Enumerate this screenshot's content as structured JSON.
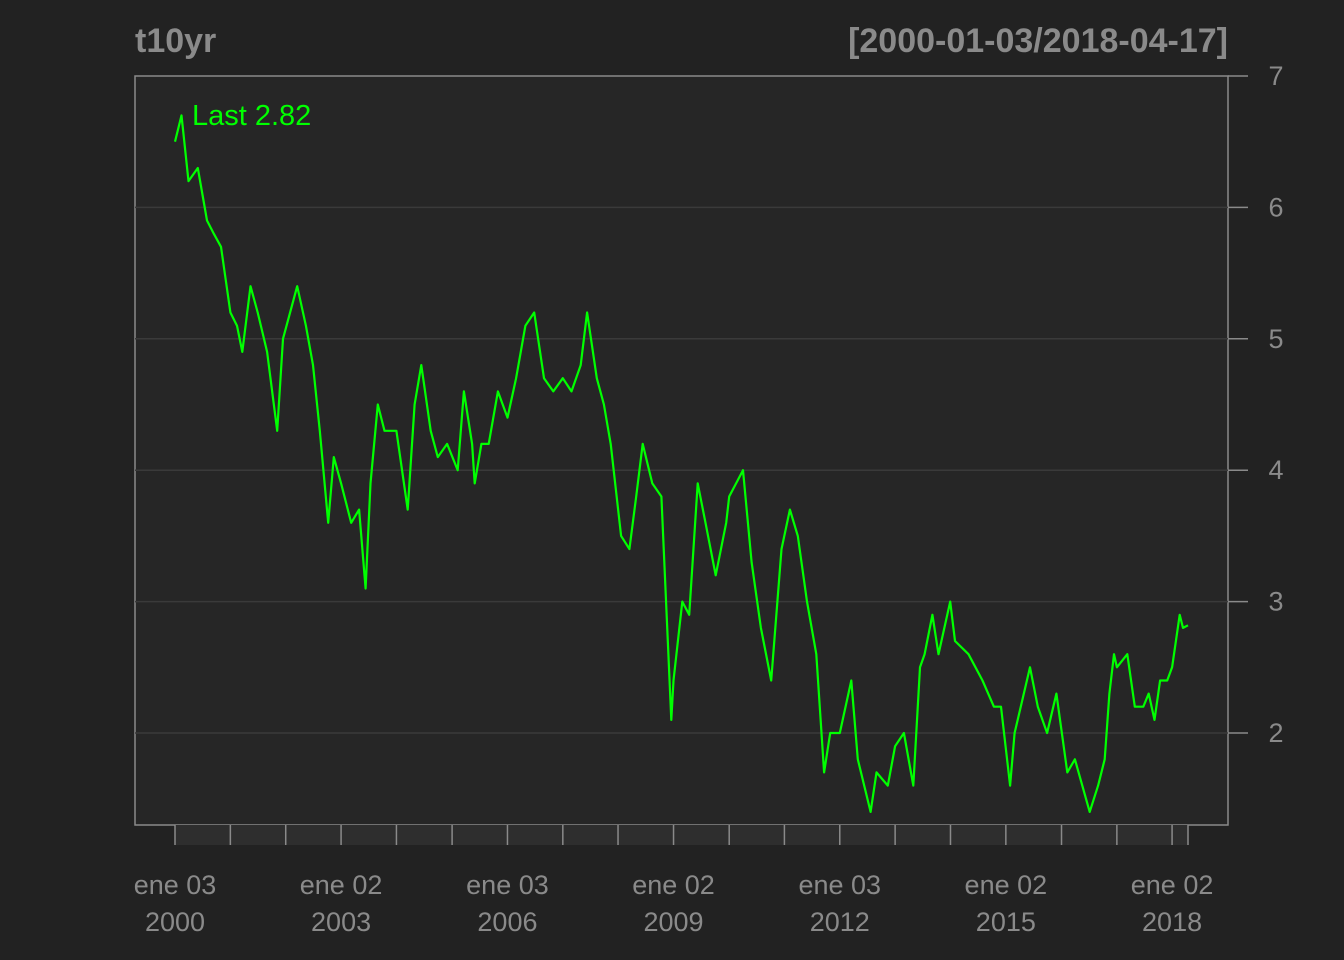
{
  "chart_data": {
    "type": "line",
    "title": "t10yr",
    "date_range": "[2000-01-03/2018-04-17]",
    "last_label": "Last 2.82",
    "ylim": [
      1.3,
      7.0
    ],
    "y_ticks": [
      2,
      3,
      4,
      5,
      6,
      7
    ],
    "x_range": [
      "2000-01-03",
      "2018-04-17"
    ],
    "x_tick_labels": [
      {
        "date": "2000-01-03",
        "line1": "ene 03",
        "line2": "2000"
      },
      {
        "date": "2003-01-02",
        "line1": "ene 02",
        "line2": "2003"
      },
      {
        "date": "2006-01-03",
        "line1": "ene 03",
        "line2": "2006"
      },
      {
        "date": "2009-01-02",
        "line1": "ene 02",
        "line2": "2009"
      },
      {
        "date": "2012-01-03",
        "line1": "ene 03",
        "line2": "2012"
      },
      {
        "date": "2015-01-02",
        "line1": "ene 02",
        "line2": "2015"
      },
      {
        "date": "2018-01-02",
        "line1": "ene 02",
        "line2": "2018"
      }
    ],
    "x_minor_ticks": [
      "2000-01-03",
      "2001-01-02",
      "2002-01-02",
      "2003-01-02",
      "2004-01-02",
      "2005-01-03",
      "2006-01-03",
      "2007-01-03",
      "2008-01-02",
      "2009-01-02",
      "2010-01-04",
      "2011-01-03",
      "2012-01-03",
      "2013-01-02",
      "2014-01-02",
      "2015-01-02",
      "2016-01-04",
      "2017-01-03",
      "2018-01-02",
      "2018-04-17"
    ],
    "grid": true,
    "colors": {
      "background": "#222222",
      "panel": "#262626",
      "line": "#00ff00",
      "axis": "#8a8a8a",
      "grid": "#3a3a3a"
    },
    "series": [
      {
        "x": [
          "2000-01-03",
          "2000-02-15",
          "2000-04-01",
          "2000-06-01",
          "2000-08-01",
          "2000-09-15",
          "2000-11-01",
          "2001-01-02",
          "2001-02-15",
          "2001-03-22",
          "2001-05-15",
          "2001-07-01",
          "2001-09-01",
          "2001-11-07",
          "2001-12-15",
          "2002-03-19",
          "2002-05-15",
          "2002-07-01",
          "2002-08-15",
          "2002-10-09",
          "2002-11-15",
          "2003-01-02",
          "2003-03-10",
          "2003-05-01",
          "2003-06-13",
          "2003-07-15",
          "2003-09-01",
          "2003-10-15",
          "2004-01-02",
          "2004-03-16",
          "2004-05-01",
          "2004-06-14",
          "2004-08-15",
          "2004-10-01",
          "2004-12-01",
          "2005-02-09",
          "2005-03-22",
          "2005-05-15",
          "2005-06-01",
          "2005-07-15",
          "2005-09-01",
          "2005-11-01",
          "2006-01-03",
          "2006-03-01",
          "2006-05-01",
          "2006-06-28",
          "2006-09-01",
          "2006-11-01",
          "2007-01-03",
          "2007-03-01",
          "2007-05-01",
          "2007-06-12",
          "2007-08-15",
          "2007-10-01",
          "2007-11-15",
          "2008-01-22",
          "2008-03-17",
          "2008-05-01",
          "2008-06-13",
          "2008-08-15",
          "2008-10-14",
          "2008-12-18",
          "2009-01-02",
          "2009-03-01",
          "2009-04-15",
          "2009-06-10",
          "2009-08-01",
          "2009-10-07",
          "2009-12-15",
          "2010-01-04",
          "2010-04-05",
          "2010-06-01",
          "2010-08-01",
          "2010-10-08",
          "2010-12-15",
          "2011-02-08",
          "2011-04-01",
          "2011-06-01",
          "2011-08-01",
          "2011-09-22",
          "2011-11-01",
          "2012-01-03",
          "2012-03-19",
          "2012-05-01",
          "2012-07-24",
          "2012-09-01",
          "2012-11-15",
          "2013-01-02",
          "2013-03-01",
          "2013-05-02",
          "2013-06-15",
          "2013-07-15",
          "2013-09-05",
          "2013-10-15",
          "2013-12-31",
          "2014-02-01",
          "2014-05-01",
          "2014-08-01",
          "2014-10-15",
          "2014-12-01",
          "2015-01-30",
          "2015-03-01",
          "2015-06-10",
          "2015-08-01",
          "2015-10-01",
          "2015-12-01",
          "2016-02-11",
          "2016-04-01",
          "2016-07-08",
          "2016-09-01",
          "2016-10-15",
          "2016-11-15",
          "2016-12-15",
          "2017-01-03",
          "2017-03-13",
          "2017-05-01",
          "2017-06-26",
          "2017-08-01",
          "2017-09-08",
          "2017-10-15",
          "2017-12-01",
          "2018-01-02",
          "2018-02-21",
          "2018-03-15",
          "2018-04-17"
        ],
        "values": [
          6.5,
          6.7,
          6.2,
          6.3,
          5.9,
          5.8,
          5.7,
          5.2,
          5.1,
          4.9,
          5.4,
          5.2,
          4.9,
          4.3,
          5.0,
          5.4,
          5.1,
          4.8,
          4.3,
          3.6,
          4.1,
          3.9,
          3.6,
          3.7,
          3.1,
          3.9,
          4.5,
          4.3,
          4.3,
          3.7,
          4.5,
          4.8,
          4.3,
          4.1,
          4.2,
          4.0,
          4.6,
          4.2,
          3.9,
          4.2,
          4.2,
          4.6,
          4.4,
          4.7,
          5.1,
          5.2,
          4.7,
          4.6,
          4.7,
          4.6,
          4.8,
          5.2,
          4.7,
          4.5,
          4.2,
          3.5,
          3.4,
          3.8,
          4.2,
          3.9,
          3.8,
          2.1,
          2.4,
          3.0,
          2.9,
          3.9,
          3.6,
          3.2,
          3.6,
          3.8,
          4.0,
          3.3,
          2.8,
          2.4,
          3.4,
          3.7,
          3.5,
          3.0,
          2.6,
          1.7,
          2.0,
          2.0,
          2.4,
          1.8,
          1.4,
          1.7,
          1.6,
          1.9,
          2.0,
          1.6,
          2.5,
          2.6,
          2.9,
          2.6,
          3.0,
          2.7,
          2.6,
          2.4,
          2.2,
          2.2,
          1.6,
          2.0,
          2.5,
          2.2,
          2.0,
          2.3,
          1.7,
          1.8,
          1.4,
          1.6,
          1.8,
          2.3,
          2.6,
          2.5,
          2.6,
          2.2,
          2.2,
          2.3,
          2.1,
          2.4,
          2.4,
          2.5,
          2.9,
          2.8,
          2.82
        ]
      }
    ]
  }
}
